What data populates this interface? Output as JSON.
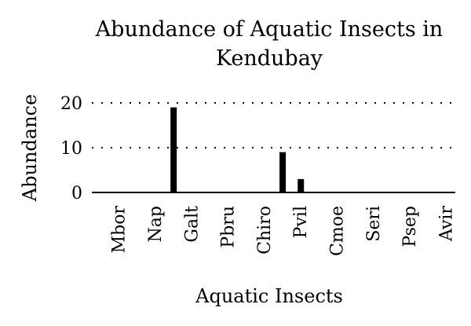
{
  "chart_data": {
    "type": "bar",
    "title_lines": [
      "Abundance of Aquatic Insects in",
      "Kendubay"
    ],
    "xlabel": "Aquatic Insects",
    "ylabel": "Abundance",
    "y_ticks": [
      0,
      10,
      20
    ],
    "ylim": [
      0,
      20
    ],
    "grid": "horizontal dotted",
    "slots": [
      "",
      "Mbor",
      "",
      "Nap",
      "",
      "Galt",
      "",
      "Pbru",
      "",
      "Chiro",
      "",
      "Pvil",
      "",
      "Cmoe",
      "",
      "Seri",
      "",
      "Psep",
      "",
      "Avir"
    ],
    "values": [
      0,
      0,
      0,
      0,
      19,
      0,
      0,
      0,
      0,
      0,
      9,
      3,
      0,
      0,
      0,
      0,
      0,
      0,
      0,
      0
    ],
    "colors": {
      "bar": "#000000",
      "axis": "#000000",
      "grid": "#000000"
    }
  }
}
